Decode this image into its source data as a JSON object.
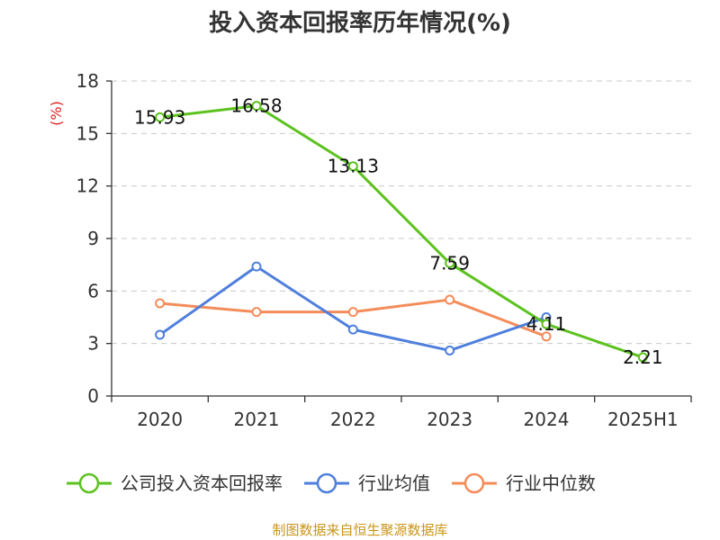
{
  "chart_data": {
    "type": "line",
    "title": "投入资本回报率历年情况(%)",
    "ylabel": "(%)",
    "xlabel": "",
    "categories": [
      "2020",
      "2021",
      "2022",
      "2023",
      "2024",
      "2025H1"
    ],
    "ylim": [
      0,
      18
    ],
    "yticks": [
      0,
      3,
      6,
      9,
      12,
      15,
      18
    ],
    "grid": true,
    "legend_position": "bottom",
    "series": [
      {
        "name": "公司投入资本回报率",
        "color": "#5cc21f",
        "values": [
          15.93,
          16.58,
          13.13,
          7.59,
          4.11,
          2.21
        ],
        "show_labels": true
      },
      {
        "name": "行业均值",
        "color": "#4f7fdc",
        "values": [
          3.5,
          7.4,
          3.8,
          2.6,
          4.5,
          null
        ],
        "show_labels": false
      },
      {
        "name": "行业中位数",
        "color": "#f48c5a",
        "values": [
          5.3,
          4.8,
          4.8,
          5.5,
          3.4,
          null
        ],
        "show_labels": false
      }
    ],
    "data_labels": [
      "15.93",
      "16.58",
      "13.13",
      "7.59",
      "4.11",
      "2.21"
    ],
    "source": "制图数据来自恒生聚源数据库"
  }
}
